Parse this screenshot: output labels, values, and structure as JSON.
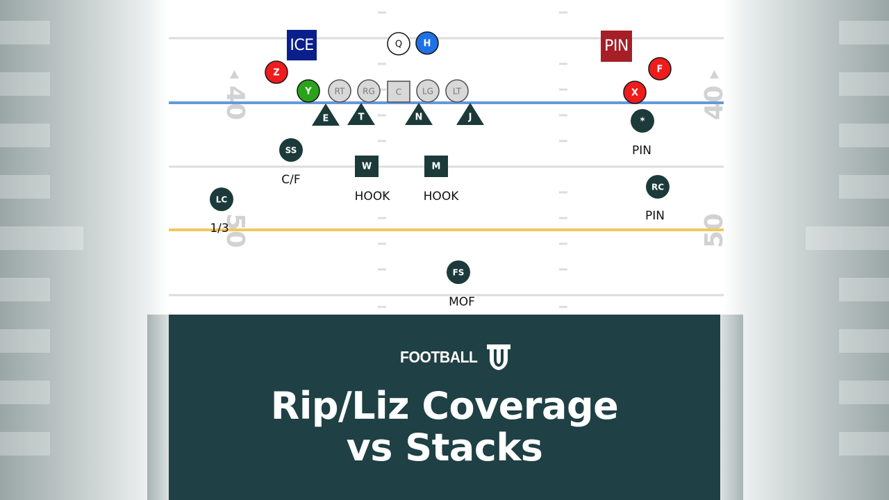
{
  "field": {
    "yard_numbers": {
      "forty": "40",
      "fifty": "50"
    }
  },
  "tags": {
    "ice": "ICE",
    "pin": "PIN"
  },
  "offense": {
    "q": "Q",
    "h": "H",
    "z": "Z",
    "y": "Y",
    "rt": "RT",
    "rg": "RG",
    "c": "C",
    "lg": "LG",
    "lt": "LT",
    "x": "X",
    "f": "F"
  },
  "defense": {
    "e": "E",
    "t": "T",
    "n": "N",
    "j": "J",
    "ss": "SS",
    "w": "W",
    "m": "M",
    "lc": "LC",
    "star": "*",
    "rc": "RC",
    "fs": "FS"
  },
  "assignments": {
    "ss": "C/F",
    "w": "HOOK",
    "m": "HOOK",
    "lc": "1/3",
    "star": "PIN",
    "rc": "PIN",
    "fs": "MOF"
  },
  "colors": {
    "ice_tag": "#0a1e8c",
    "pin_tag": "#a61e26",
    "receiver_red": "#ee1c1c",
    "tight_end_green": "#2aa31a",
    "back_blue": "#1e72e6",
    "defender": "#1c3a3a",
    "line_of_scrimmage": "#6699dd",
    "first_down_line": "#f2c75c",
    "banner": "#1f4044"
  },
  "banner": {
    "logo_text": "FOOTBALL",
    "logo_mark": "U",
    "title_line1": "Rip/Liz Coverage",
    "title_line2": "vs Stacks"
  }
}
